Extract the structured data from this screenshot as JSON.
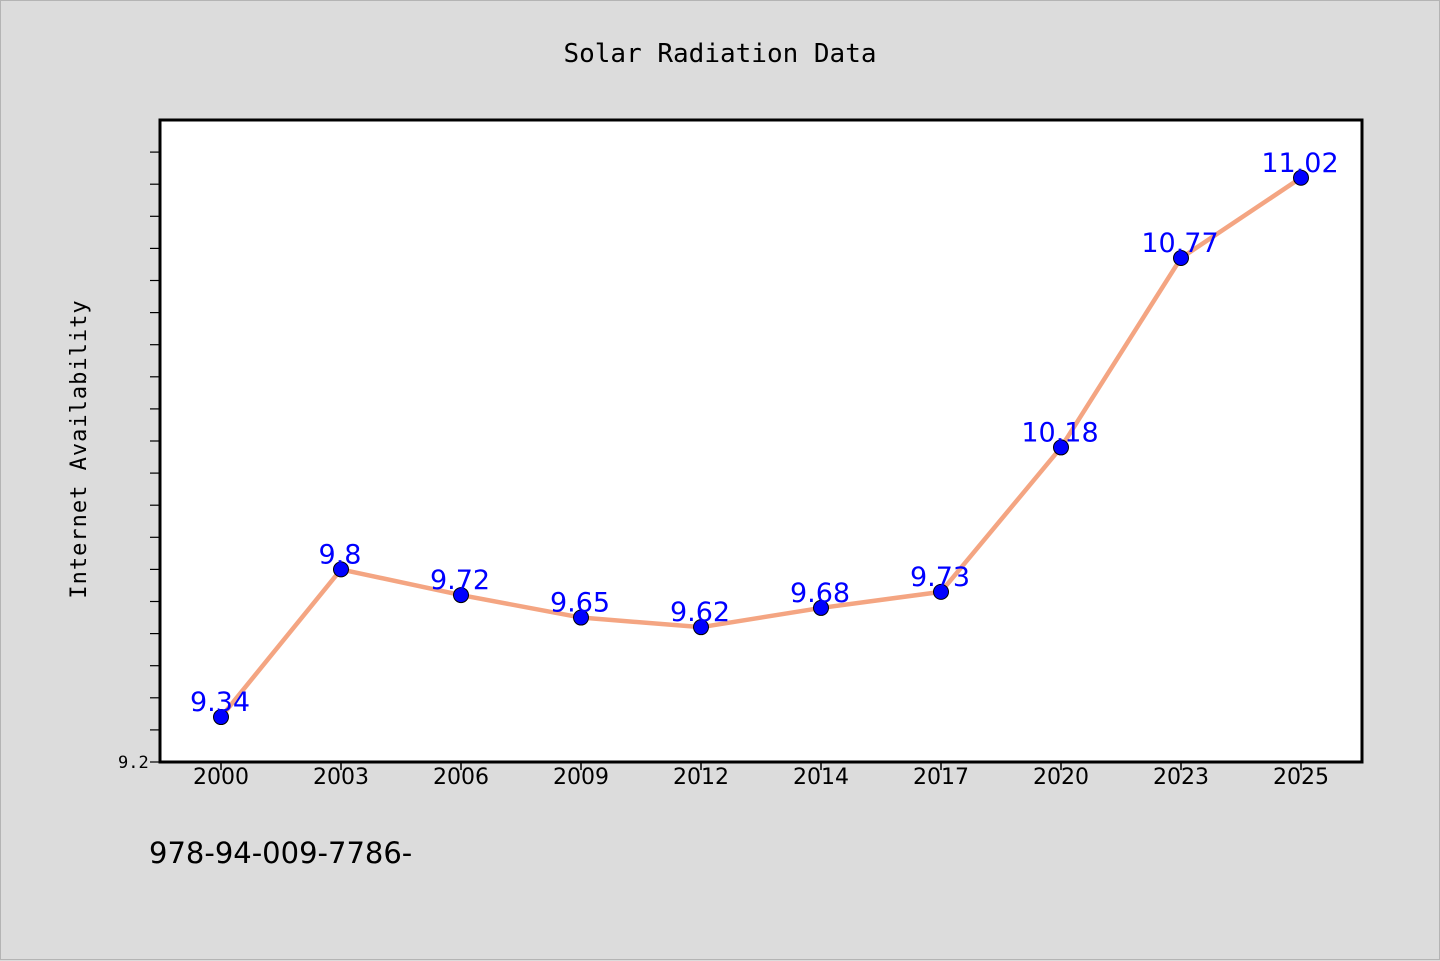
{
  "chart_data": {
    "type": "line",
    "title": "Solar Radiation Data",
    "xlabel": "",
    "ylabel": "Internet Availability",
    "categories": [
      "2000",
      "2003",
      "2006",
      "2009",
      "2012",
      "2014",
      "2017",
      "2020",
      "2023",
      "2025"
    ],
    "series": [
      {
        "values": [
          9.34,
          9.8,
          9.72,
          9.65,
          9.62,
          9.68,
          9.73,
          10.18,
          10.77,
          11.02
        ]
      }
    ],
    "data_labels": [
      "9.34",
      "9.8",
      "9.72",
      "9.65",
      "9.62",
      "9.68",
      "9.73",
      "10.18",
      "10.77",
      "11.02"
    ],
    "ylim": [
      9.2,
      11.2
    ],
    "y_tick_labels": [
      "9.2"
    ],
    "grid": false,
    "colors": {
      "line": "#f4a582",
      "marker": "#0000ff",
      "data_label": "#0000ff",
      "background": "#dcdcdc",
      "plot_background": "#ffffff"
    }
  },
  "footer": {
    "isbn_text": "978-94-009-7786-"
  }
}
